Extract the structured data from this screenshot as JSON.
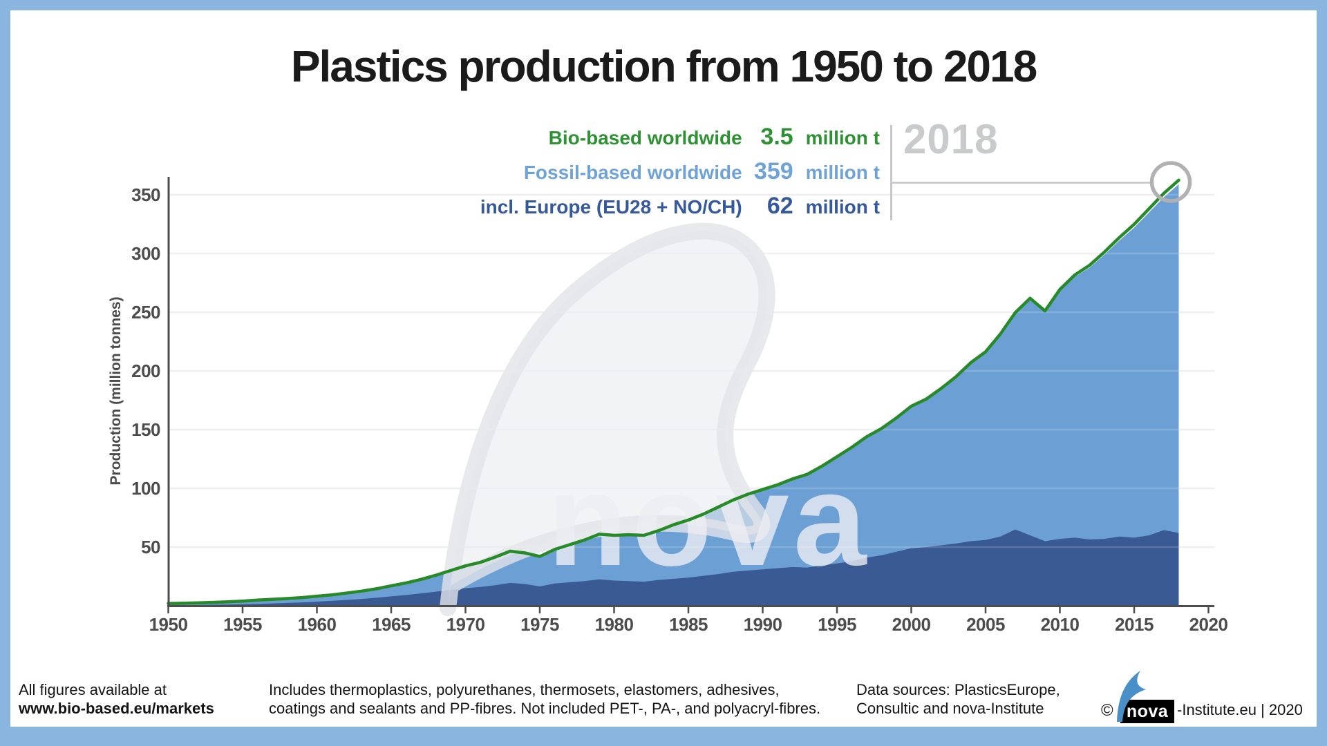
{
  "title": "Plastics production from 1950 to 2018",
  "legend": {
    "year_callout": "2018",
    "items": [
      {
        "label": "Bio-based worldwide",
        "value": "3.5",
        "unit": "million t",
        "color": "#2e9132"
      },
      {
        "label": "Fossil-based worldwide",
        "value": "359",
        "unit": "million t",
        "color": "#6fa3d8"
      },
      {
        "label": "incl. Europe (EU28 + NO/CH)",
        "value": "62",
        "unit": "million t",
        "color": "#35599b"
      }
    ]
  },
  "watermark_text": "nova",
  "chart_data": {
    "type": "area",
    "title": "Plastics production from 1950 to 2018",
    "xlabel": "",
    "ylabel": "Production (million tonnes)",
    "x_ticks": [
      "1950",
      "1955",
      "1960",
      "1965",
      "1970",
      "1975",
      "1980",
      "1985",
      "1990",
      "1995",
      "2000",
      "2005",
      "2010",
      "2015",
      "2020"
    ],
    "y_ticks": [
      50,
      100,
      150,
      200,
      250,
      300,
      350
    ],
    "ylim": [
      0,
      370
    ],
    "xlim": [
      1950,
      2020
    ],
    "grid": "horizontal",
    "legend_position": "top-right",
    "annotation": {
      "year": "2018",
      "bio_based_worldwide_mt": 3.5,
      "fossil_based_worldwide_mt": 359,
      "europe_eu28_no_ch_mt": 62
    },
    "start_year": 1950,
    "end_year": 2018,
    "colors": {
      "fossil_area": "#6ca0d4",
      "europe_area": "#3a5a94",
      "bio_line": "#278a28"
    },
    "series": [
      {
        "name": "Fossil-based worldwide",
        "type": "area",
        "values": [
          2.0,
          2.2,
          2.5,
          2.9,
          3.4,
          4.0,
          4.8,
          5.5,
          6.2,
          7.0,
          8.2,
          9.3,
          10.8,
          12.5,
          14.5,
          17.0,
          19.5,
          22.5,
          26.0,
          30.0,
          34.0,
          37.0,
          41.5,
          46.5,
          45.0,
          42.0,
          48.0,
          52.0,
          56.0,
          61.0,
          60.0,
          60.5,
          60.0,
          64.0,
          69.0,
          73.0,
          78.0,
          84.0,
          90.0,
          95.0,
          99,
          103,
          108,
          112,
          119,
          127,
          135,
          144,
          151,
          160,
          170,
          176,
          185,
          195,
          207,
          216,
          231,
          249,
          261,
          250,
          268,
          280,
          288,
          299,
          311,
          322,
          335,
          348,
          359
        ]
      },
      {
        "name": "incl. Europe (EU28 + NO/CH)",
        "type": "area",
        "values": [
          0.4,
          0.5,
          0.6,
          0.8,
          1.0,
          1.3,
          1.6,
          2.0,
          2.4,
          2.9,
          3.5,
          4.2,
          5.0,
          5.8,
          6.8,
          8.0,
          9.2,
          10.5,
          12.0,
          13.5,
          15.0,
          16.0,
          17.5,
          19.5,
          18.5,
          16.5,
          19.0,
          20.0,
          21.0,
          22.5,
          21.5,
          21.0,
          20.5,
          22.0,
          23.0,
          24.0,
          25.5,
          27.0,
          29.0,
          30.0,
          31,
          32,
          33,
          32.5,
          34.5,
          36,
          38,
          41,
          43,
          46,
          49,
          50,
          51.5,
          53,
          55,
          56,
          59,
          65,
          60,
          55,
          57,
          58,
          56.5,
          57,
          59,
          58,
          60,
          64.5,
          62
        ]
      },
      {
        "name": "Bio-based worldwide",
        "type": "line-addon",
        "values": [
          0,
          0,
          0,
          0,
          0,
          0,
          0,
          0,
          0,
          0,
          0,
          0,
          0,
          0,
          0,
          0,
          0,
          0,
          0,
          0,
          0,
          0,
          0,
          0,
          0,
          0,
          0,
          0,
          0,
          0,
          0,
          0,
          0,
          0,
          0,
          0,
          0,
          0,
          0,
          0,
          0,
          0,
          0,
          0,
          0,
          0,
          0,
          0,
          0,
          0,
          0,
          0,
          0,
          0,
          0,
          0.3,
          0.5,
          0.7,
          0.9,
          1.1,
          1.4,
          1.7,
          2.0,
          2.3,
          2.6,
          2.9,
          3.1,
          3.3,
          3.5
        ]
      }
    ]
  },
  "footer": {
    "left": [
      "All figures available at",
      "www.bio-based.eu/markets"
    ],
    "middle": [
      "Includes thermoplastics, polyurethanes, thermosets, elastomers, adhesives,",
      "coatings and sealants and PP-fibres. Not included PET-, PA-, and polyacryl-fibres."
    ],
    "right": [
      "Data sources: PlasticsEurope,",
      "Consultic and nova-Institute"
    ],
    "logo": {
      "copyright": "©",
      "mark": "nova",
      "suffix": "-Institute.eu | 2020"
    }
  }
}
